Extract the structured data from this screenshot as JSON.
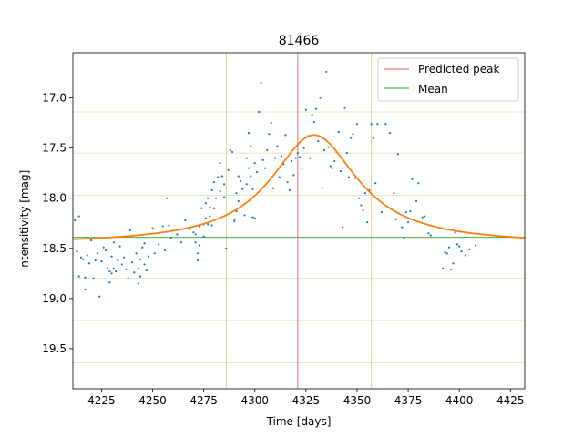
{
  "chart_data": {
    "type": "scatter",
    "title": "81466",
    "xlabel": "Time [days]",
    "ylabel": "Intensitivity [mag]",
    "xlim": [
      4211,
      4432
    ],
    "ylim": [
      19.9,
      16.55
    ],
    "y_inverted": true,
    "xticks": [
      4225,
      4250,
      4275,
      4300,
      4325,
      4350,
      4375,
      4400,
      4425
    ],
    "yticks": [
      17.0,
      17.5,
      18.0,
      18.5,
      19.0,
      19.5
    ],
    "ytick_labels": [
      "17.0",
      "17.5",
      "18.0",
      "18.5",
      "19.0",
      "19.5"
    ],
    "legend_position": "top-right",
    "colors": {
      "points": "#1f77b4",
      "fit": "#ff7f0e",
      "predicted_peak": "#e06060",
      "mean": "#2ca02c",
      "guides": "#d4d48a"
    },
    "predicted_peak": {
      "x": 4321,
      "label": "Predicted peak"
    },
    "mean": {
      "y": 18.39,
      "label": "Mean"
    },
    "vertical_guides": [
      4286,
      4357
    ],
    "horizontal_guides": [
      17.14,
      17.55,
      17.97,
      18.8,
      19.22,
      19.64
    ],
    "fit_curve": {
      "baseline": 18.46,
      "peak": 17.37,
      "center": 4329,
      "width": 26
    },
    "series": [
      {
        "values": [
          [
            4212,
            18.22
          ],
          [
            4213,
            18.53
          ],
          [
            4214,
            18.18
          ],
          [
            4214,
            18.78
          ],
          [
            4215,
            18.59
          ],
          [
            4216,
            18.61
          ],
          [
            4217,
            18.79
          ],
          [
            4217,
            18.91
          ],
          [
            4218,
            18.57
          ],
          [
            4219,
            18.65
          ],
          [
            4220,
            18.42
          ],
          [
            4221,
            18.8
          ],
          [
            4222,
            18.62
          ],
          [
            4223,
            18.55
          ],
          [
            4224,
            18.98
          ],
          [
            4225,
            18.63
          ],
          [
            4226,
            18.49
          ],
          [
            4227,
            18.52
          ],
          [
            4228,
            18.7
          ],
          [
            4229,
            18.73
          ],
          [
            4229,
            18.84
          ],
          [
            4230,
            18.58
          ],
          [
            4230,
            18.75
          ],
          [
            4231,
            18.44
          ],
          [
            4231,
            18.7
          ],
          [
            4232,
            18.73
          ],
          [
            4233,
            18.62
          ],
          [
            4234,
            18.48
          ],
          [
            4235,
            18.66
          ],
          [
            4236,
            18.59
          ],
          [
            4237,
            18.71
          ],
          [
            4238,
            18.8
          ],
          [
            4239,
            18.32
          ],
          [
            4240,
            18.64
          ],
          [
            4241,
            18.74
          ],
          [
            4242,
            18.55
          ],
          [
            4243,
            18.7
          ],
          [
            4243,
            18.85
          ],
          [
            4244,
            18.61
          ],
          [
            4244,
            18.78
          ],
          [
            4245,
            18.49
          ],
          [
            4246,
            18.45
          ],
          [
            4246,
            18.66
          ],
          [
            4247,
            18.72
          ],
          [
            4248,
            18.58
          ],
          [
            4250,
            18.3
          ],
          [
            4251,
            18.55
          ],
          [
            4253,
            18.46
          ],
          [
            4255,
            18.28
          ],
          [
            4256,
            18.52
          ],
          [
            4257,
            18.0
          ],
          [
            4258,
            18.27
          ],
          [
            4259,
            18.4
          ],
          [
            4262,
            18.36
          ],
          [
            4264,
            18.44
          ],
          [
            4266,
            18.22
          ],
          [
            4268,
            18.31
          ],
          [
            4270,
            18.34
          ],
          [
            4271,
            18.36
          ],
          [
            4271,
            18.44
          ],
          [
            4272,
            18.55
          ],
          [
            4272,
            18.62
          ],
          [
            4273,
            18.28
          ],
          [
            4273,
            18.47
          ],
          [
            4274,
            18.1
          ],
          [
            4275,
            18.26
          ],
          [
            4275,
            18.38
          ],
          [
            4276,
            18.05
          ],
          [
            4276,
            18.2
          ],
          [
            4277,
            18.0
          ],
          [
            4277,
            18.26
          ],
          [
            4278,
            18.09
          ],
          [
            4278,
            18.18
          ],
          [
            4279,
            17.92
          ],
          [
            4279,
            18.27
          ],
          [
            4280,
            17.84
          ],
          [
            4280,
            18.1
          ],
          [
            4281,
            18.0
          ],
          [
            4282,
            17.79
          ],
          [
            4283,
            17.93
          ],
          [
            4283,
            17.65
          ],
          [
            4284,
            17.78
          ],
          [
            4285,
            17.86
          ],
          [
            4285,
            17.99
          ],
          [
            4286,
            18.5
          ],
          [
            4287,
            17.72
          ],
          [
            4288,
            17.52
          ],
          [
            4289,
            17.54
          ],
          [
            4290,
            18.23
          ],
          [
            4290,
            18.21
          ],
          [
            4291,
            18.13
          ],
          [
            4291,
            17.95
          ],
          [
            4292,
            18.03
          ],
          [
            4292,
            17.78
          ],
          [
            4293,
            17.83
          ],
          [
            4294,
            17.91
          ],
          [
            4295,
            18.17
          ],
          [
            4296,
            17.6
          ],
          [
            4296,
            17.86
          ],
          [
            4297,
            17.7
          ],
          [
            4297,
            17.35
          ],
          [
            4298,
            17.48
          ],
          [
            4298,
            17.78
          ],
          [
            4299,
            18.19
          ],
          [
            4299,
            17.91
          ],
          [
            4300,
            18.2
          ],
          [
            4300,
            17.65
          ],
          [
            4301,
            17.74
          ],
          [
            4302,
            17.14
          ],
          [
            4303,
            16.85
          ],
          [
            4304,
            17.62
          ],
          [
            4305,
            17.7
          ],
          [
            4306,
            17.52
          ],
          [
            4307,
            17.36
          ],
          [
            4308,
            17.25
          ],
          [
            4309,
            17.9
          ],
          [
            4310,
            17.6
          ],
          [
            4311,
            17.48
          ],
          [
            4312,
            17.79
          ],
          [
            4313,
            17.58
          ],
          [
            4314,
            17.66
          ],
          [
            4315,
            17.37
          ],
          [
            4316,
            17.84
          ],
          [
            4317,
            17.92
          ],
          [
            4318,
            17.63
          ],
          [
            4319,
            17.77
          ],
          [
            4320,
            17.6
          ],
          [
            4321,
            17.55
          ],
          [
            4322,
            17.59
          ],
          [
            4323,
            17.7
          ],
          [
            4324,
            17.5
          ],
          [
            4325,
            17.12
          ],
          [
            4326,
            17.38
          ],
          [
            4327,
            17.6
          ],
          [
            4328,
            17.17
          ],
          [
            4329,
            17.24
          ],
          [
            4330,
            17.11
          ],
          [
            4331,
            17.43
          ],
          [
            4332,
            17.0
          ],
          [
            4333,
            17.9
          ],
          [
            4334,
            17.52
          ],
          [
            4335,
            16.74
          ],
          [
            4336,
            17.49
          ],
          [
            4337,
            17.68
          ],
          [
            4338,
            17.7
          ],
          [
            4339,
            17.63
          ],
          [
            4340,
            17.54
          ],
          [
            4341,
            17.34
          ],
          [
            4342,
            17.73
          ],
          [
            4343,
            18.29
          ],
          [
            4343,
            17.7
          ],
          [
            4344,
            17.1
          ],
          [
            4345,
            17.55
          ],
          [
            4346,
            17.79
          ],
          [
            4347,
            17.4
          ],
          [
            4348,
            17.36
          ],
          [
            4349,
            17.8
          ],
          [
            4350,
            17.26
          ],
          [
            4351,
            18.0
          ],
          [
            4352,
            18.07
          ],
          [
            4353,
            18.12
          ],
          [
            4354,
            17.95
          ],
          [
            4355,
            18.24
          ],
          [
            4356,
            17.92
          ],
          [
            4357,
            17.26
          ],
          [
            4358,
            17.4
          ],
          [
            4359,
            17.85
          ],
          [
            4360,
            17.26
          ],
          [
            4362,
            18.14
          ],
          [
            4364,
            17.26
          ],
          [
            4366,
            17.35
          ],
          [
            4368,
            17.95
          ],
          [
            4369,
            18.21
          ],
          [
            4370,
            17.56
          ],
          [
            4372,
            18.29
          ],
          [
            4373,
            18.4
          ],
          [
            4374,
            18.14
          ],
          [
            4375,
            18.24
          ],
          [
            4376,
            18.13
          ],
          [
            4377,
            17.81
          ],
          [
            4379,
            18.03
          ],
          [
            4380,
            17.85
          ],
          [
            4382,
            18.19
          ],
          [
            4383,
            18.18
          ],
          [
            4385,
            18.35
          ],
          [
            4386,
            18.37
          ],
          [
            4392,
            18.7
          ],
          [
            4393,
            18.54
          ],
          [
            4394,
            18.55
          ],
          [
            4395,
            18.49
          ],
          [
            4396,
            18.71
          ],
          [
            4397,
            18.65
          ],
          [
            4398,
            18.34
          ],
          [
            4399,
            18.46
          ],
          [
            4400,
            18.48
          ],
          [
            4401,
            18.53
          ],
          [
            4403,
            18.57
          ],
          [
            4405,
            18.51
          ],
          [
            4408,
            18.47
          ]
        ]
      }
    ]
  }
}
